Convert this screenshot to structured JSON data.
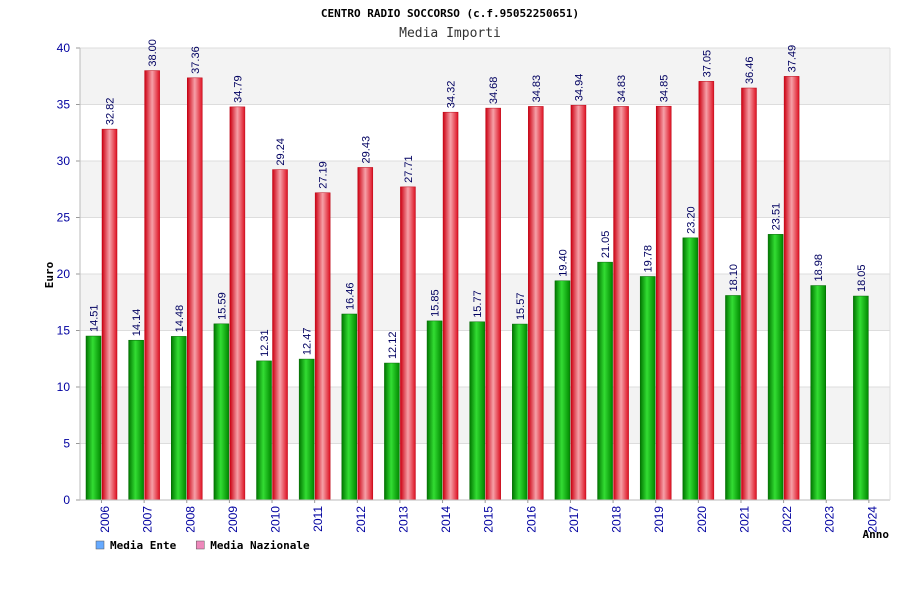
{
  "chart_data": {
    "type": "bar",
    "title": "CENTRO RADIO SOCCORSO (c.f.95052250651)",
    "subtitle": "Media Importi",
    "xlabel": "Anno",
    "ylabel": "Euro",
    "ylim": [
      0,
      40
    ],
    "yticks": [
      0,
      5,
      10,
      15,
      20,
      25,
      30,
      35,
      40
    ],
    "grid": true,
    "legend_position": "bottom-left",
    "categories": [
      "2006",
      "2007",
      "2008",
      "2009",
      "2010",
      "2011",
      "2012",
      "2013",
      "2014",
      "2015",
      "2016",
      "2017",
      "2018",
      "2019",
      "2020",
      "2021",
      "2022",
      "2023",
      "2024"
    ],
    "series": [
      {
        "name": "Media Ente",
        "legend_color": "#66aaff",
        "bar_color": "#11bb11",
        "values": [
          14.51,
          14.14,
          14.48,
          15.59,
          12.31,
          12.47,
          16.46,
          12.12,
          15.85,
          15.77,
          15.57,
          19.4,
          21.05,
          19.78,
          23.2,
          18.1,
          23.51,
          18.98,
          18.05
        ],
        "labels": [
          "14.51",
          "14.14",
          "14.48",
          "15.59",
          "12.31",
          "12.47",
          "16.46",
          "12.12",
          "15.85",
          "15.77",
          "15.57",
          "19.40",
          "21.05",
          "19.78",
          "23.20",
          "18.10",
          "23.51",
          "18.98",
          "18.05"
        ]
      },
      {
        "name": "Media Nazionale",
        "legend_color": "#ee88bb",
        "bar_color": "#ee2233",
        "values": [
          32.82,
          38.0,
          37.36,
          34.79,
          29.24,
          27.19,
          29.43,
          27.71,
          34.32,
          34.68,
          34.83,
          34.94,
          34.83,
          34.85,
          37.05,
          36.46,
          37.49,
          null,
          null
        ],
        "labels": [
          "32.82",
          "38.00",
          "37.36",
          "34.79",
          "29.24",
          "27.19",
          "29.43",
          "27.71",
          "34.32",
          "34.68",
          "34.83",
          "34.94",
          "34.83",
          "34.85",
          "37.05",
          "36.46",
          "37.49",
          null,
          null
        ]
      }
    ]
  }
}
